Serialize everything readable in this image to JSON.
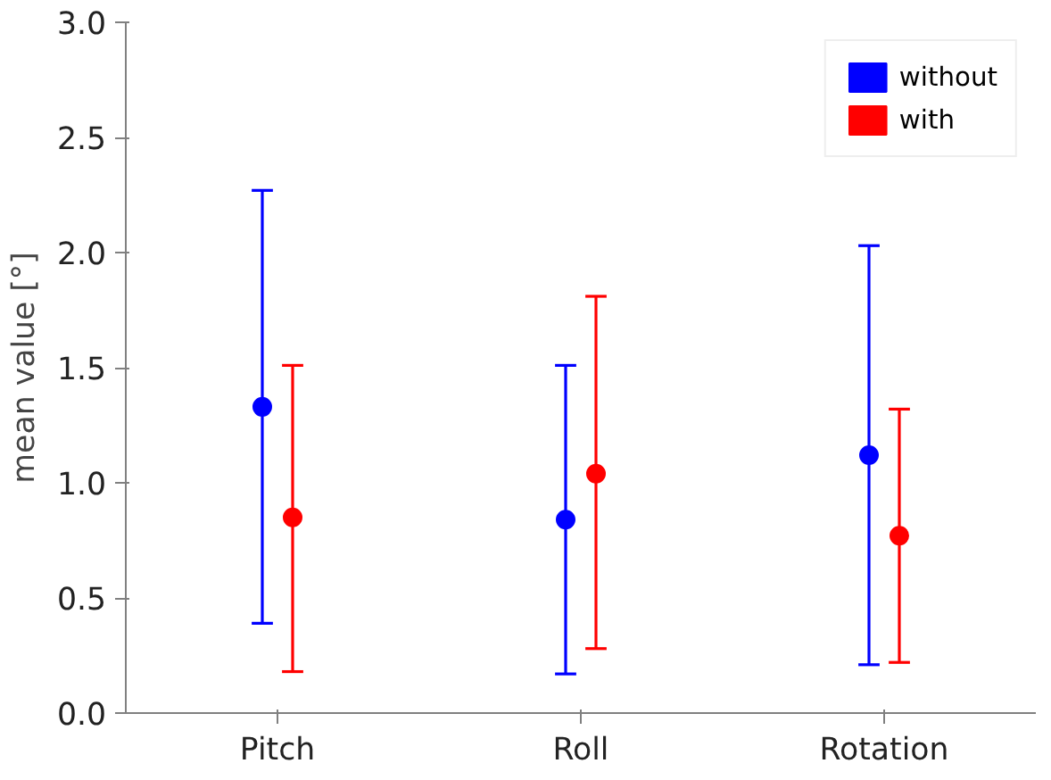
{
  "chart_data": {
    "type": "scatter",
    "ylabel": "mean value [°]",
    "categories": [
      "Pitch",
      "Roll",
      "Rotation"
    ],
    "series": [
      {
        "name": "without",
        "color": "#0000ff",
        "values": [
          1.33,
          0.84,
          1.12
        ],
        "errors": [
          [
            0.39,
            2.27
          ],
          [
            0.17,
            1.51
          ],
          [
            0.21,
            2.03
          ]
        ]
      },
      {
        "name": "with",
        "color": "#ff0000",
        "values": [
          0.85,
          1.04,
          0.77
        ],
        "errors": [
          [
            0.18,
            1.51
          ],
          [
            0.28,
            1.81
          ],
          [
            0.22,
            1.32
          ]
        ]
      }
    ],
    "ylim": [
      0,
      3
    ],
    "yticks": [
      {
        "value": 0,
        "label": "0.0"
      },
      0.5,
      {
        "value": 1,
        "label": "1.0"
      },
      1.5,
      {
        "value": 2,
        "label": "2.0"
      },
      2.5,
      {
        "value": 3,
        "label": "3.0"
      }
    ],
    "grid": false,
    "legend": "top right",
    "marker": "circle"
  }
}
